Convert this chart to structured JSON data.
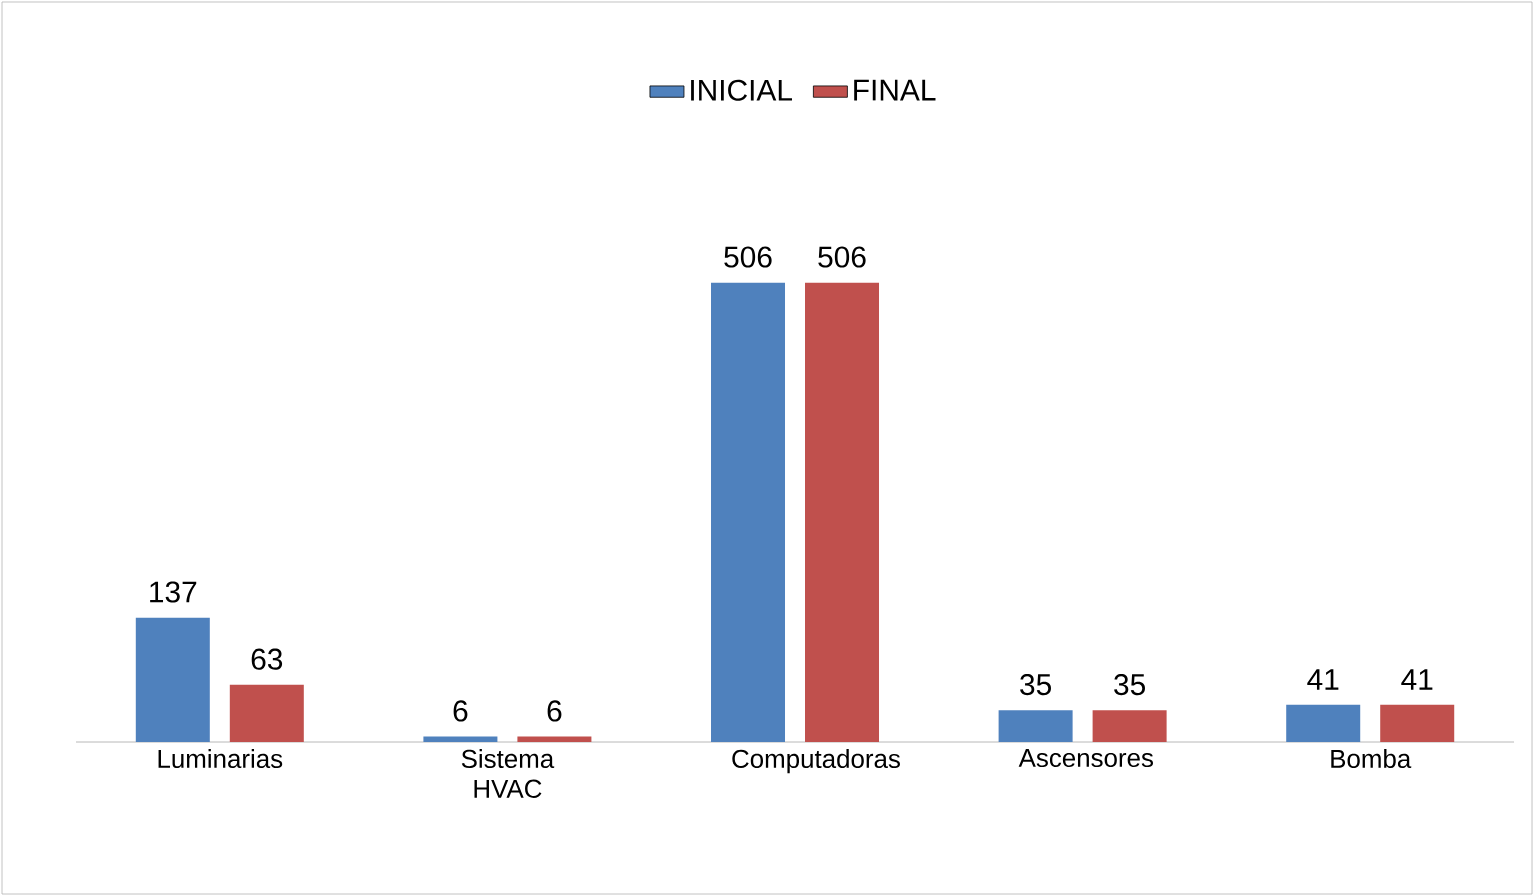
{
  "chart_data": {
    "type": "bar",
    "categories": [
      "Luminarias",
      "Sistema HVAC",
      "Computadoras",
      "Ascensores",
      "Bomba"
    ],
    "series": [
      {
        "name": "INICIAL",
        "color": "#4f81bd",
        "values": [
          137,
          6,
          506,
          35,
          41
        ]
      },
      {
        "name": "FINAL",
        "color": "#c0504d",
        "values": [
          63,
          6,
          506,
          35,
          41
        ]
      }
    ],
    "data_labels": true,
    "legend": "top"
  }
}
